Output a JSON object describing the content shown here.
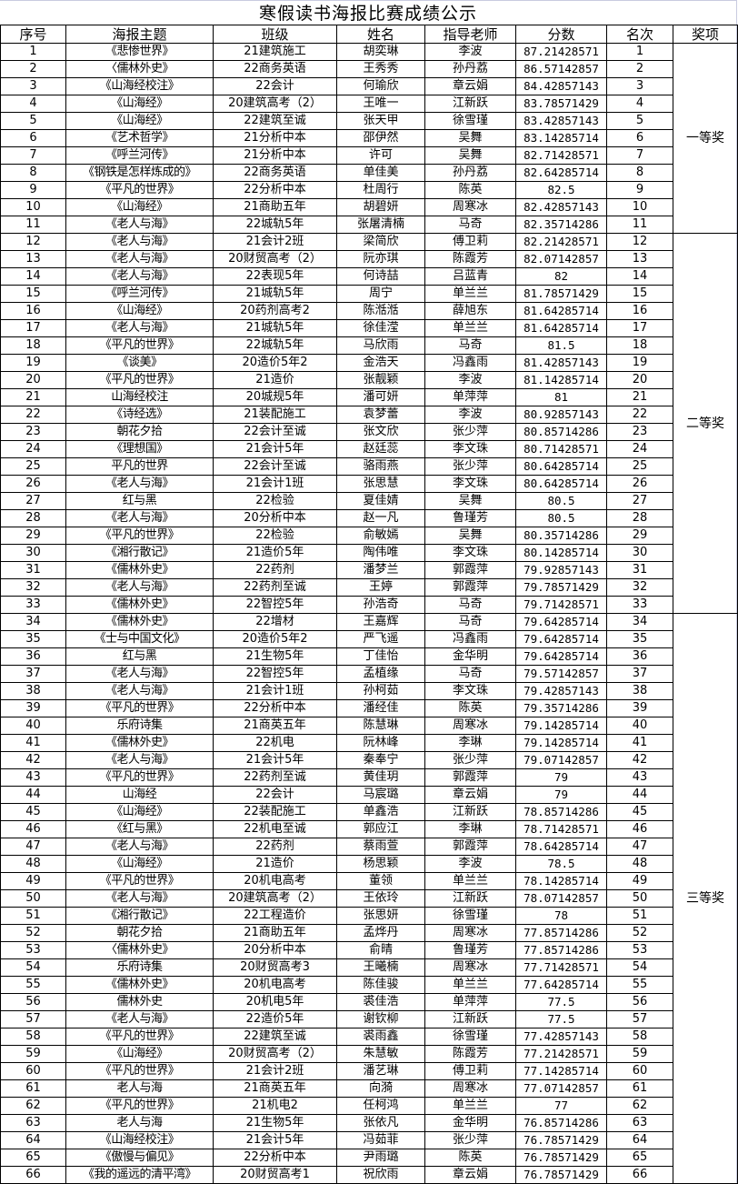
{
  "title": "寒假读书海报比赛成绩公示",
  "headers": [
    "序号",
    "海报主题",
    "班级",
    "姓名",
    "指导老师",
    "分数",
    "名次",
    "奖项"
  ],
  "awards": [
    {
      "label": "一等奖",
      "from": 1,
      "to": 11
    },
    {
      "label": "二等奖",
      "from": 12,
      "to": 33
    },
    {
      "label": "三等奖",
      "from": 34,
      "to": 66
    }
  ],
  "rows": [
    [
      "1",
      "《悲惨世界》",
      "21建筑施工",
      "胡奕琳",
      "李波",
      "87.21428571",
      "1"
    ],
    [
      "2",
      "〈儒林外史》",
      "22商务英语",
      "王秀秀",
      "孙丹荔",
      "86.57142857",
      "2"
    ],
    [
      "3",
      "《山海经校注》",
      "22会计",
      "何瑜欣",
      "章云娟",
      "84.42857143",
      "3"
    ],
    [
      "4",
      "《山海经》",
      "20建筑高考（2）",
      "王唯一",
      "江新跃",
      "83.78571429",
      "4"
    ],
    [
      "5",
      "《山海经》",
      "22建筑至诚",
      "张天甲",
      "徐雪瑾",
      "83.42857143",
      "5"
    ],
    [
      "6",
      "《艺术哲学》",
      "21分析中本",
      "邵伊然",
      "吴舞",
      "83.14285714",
      "6"
    ],
    [
      "7",
      "《呼兰河传》",
      "21分析中本",
      "许可",
      "吴舞",
      "82.71428571",
      "7"
    ],
    [
      "8",
      "《钢铁是怎样炼成的》",
      "22商务英语",
      "单佳美",
      "孙丹荔",
      "82.64285714",
      "8"
    ],
    [
      "9",
      "《平凡的世界》",
      "22分析中本",
      "杜周行",
      "陈英",
      "82.5",
      "9"
    ],
    [
      "10",
      "《山海经》",
      "21商助五年",
      "胡碧妍",
      "周寒冰",
      "82.42857143",
      "10"
    ],
    [
      "11",
      "《老人与海》",
      "22城轨5年",
      "张屠清楠",
      "马奇",
      "82.35714286",
      "11"
    ],
    [
      "12",
      "《老人与海》",
      "21会计2班",
      "梁简欣",
      "傅卫莉",
      "82.21428571",
      "12"
    ],
    [
      "13",
      "《老人与海》",
      "20财贸高考（2）",
      "阮亦琪",
      "陈霞芳",
      "82.07142857",
      "13"
    ],
    [
      "14",
      "《老人与海》",
      "22表现5年",
      "何诗喆",
      "吕蓝青",
      "82",
      "14"
    ],
    [
      "15",
      "《呼兰河传》",
      "21城轨5年",
      "周宁",
      "单兰兰",
      "81.78571429",
      "15"
    ],
    [
      "16",
      "《山海经》",
      "20药剂高考2",
      "陈湉湉",
      "薛旭东",
      "81.64285714",
      "16"
    ],
    [
      "17",
      "《老人与海》",
      "21城轨5年",
      "徐佳滢",
      "单兰兰",
      "81.64285714",
      "17"
    ],
    [
      "18",
      "《平凡的世界》",
      "22城轨5年",
      "马欣雨",
      "马奇",
      "81.5",
      "18"
    ],
    [
      "19",
      "《谈美》",
      "20造价5年2",
      "金浩天",
      "冯鑫雨",
      "81.42857143",
      "19"
    ],
    [
      "20",
      "《平凡的世界》",
      "21造价",
      "张靓颖",
      "李波",
      "81.14285714",
      "20"
    ],
    [
      "21",
      "山海经校注",
      "20城规5年",
      "潘可妍",
      "单萍萍",
      "81",
      "21"
    ],
    [
      "22",
      "《诗经选》",
      "21装配施工",
      "袁梦蕾",
      "李波",
      "80.92857143",
      "22"
    ],
    [
      "23",
      "朝花夕拾",
      "22会计至诚",
      "张文欣",
      "张少萍",
      "80.85714286",
      "23"
    ],
    [
      "24",
      "《理想国》",
      "21会计5年",
      "赵廷蕊",
      "李文珠",
      "80.71428571",
      "24"
    ],
    [
      "25",
      "平凡的世界",
      "22会计至诚",
      "骆雨燕",
      "张少萍",
      "80.64285714",
      "25"
    ],
    [
      "26",
      "《老人与海》",
      "21会计1班",
      "张思慧",
      "李文珠",
      "80.64285714",
      "26"
    ],
    [
      "27",
      "红与黑",
      "22检验",
      "夏佳婧",
      "吴舞",
      "80.5",
      "27"
    ],
    [
      "28",
      "《老人与海》",
      "20分析中本",
      "赵一凡",
      "鲁瑾芳",
      "80.5",
      "28"
    ],
    [
      "29",
      "《平凡的世界》",
      "22检验",
      "俞敏嫣",
      "吴舞",
      "80.35714286",
      "29"
    ],
    [
      "30",
      "《湘行散记》",
      "21造价5年",
      "陶伟唯",
      "李文珠",
      "80.14285714",
      "30"
    ],
    [
      "31",
      "《儒林外史》",
      "22药剂",
      "潘梦兰",
      "郭霞萍",
      "79.92857143",
      "31"
    ],
    [
      "32",
      "《老人与海》",
      "22药剂至诚",
      "王婷",
      "郭霞萍",
      "79.78571429",
      "32"
    ],
    [
      "33",
      "《儒林外史》",
      "22智控5年",
      "孙浩奇",
      "马奇",
      "79.71428571",
      "33"
    ],
    [
      "34",
      "《儒林外史》",
      "22增材",
      "王嘉辉",
      "马奇",
      "79.64285714",
      "34"
    ],
    [
      "35",
      "《士与中国文化》",
      "20造价5年2",
      "严飞遥",
      "冯鑫雨",
      "79.64285714",
      "35"
    ],
    [
      "36",
      "红与黑",
      "21生物5年",
      "丁佳怡",
      "金华明",
      "79.64285714",
      "36"
    ],
    [
      "37",
      "《老人与海》",
      "22智控5年",
      "孟植缘",
      "马奇",
      "79.57142857",
      "37"
    ],
    [
      "38",
      "《老人与海》",
      "21会计1班",
      "孙柯茹",
      "李文珠",
      "79.42857143",
      "38"
    ],
    [
      "39",
      "《平凡的世界》",
      "22分析中本",
      "潘经佳",
      "陈英",
      "79.35714286",
      "39"
    ],
    [
      "40",
      "乐府诗集",
      "21商英五年",
      "陈慧琳",
      "周寒冰",
      "79.14285714",
      "40"
    ],
    [
      "41",
      "《儒林外史》",
      "22机电",
      "阮林峰",
      "李琳",
      "79.14285714",
      "41"
    ],
    [
      "42",
      "《老人与海》",
      "21会计5年",
      "秦奉宁",
      "张少萍",
      "79.07142857",
      "42"
    ],
    [
      "43",
      "《平凡的世界》",
      "22药剂至诚",
      "黄佳玥",
      "郭霞萍",
      "79",
      "43"
    ],
    [
      "44",
      "山海经",
      "22会计",
      "马宸璐",
      "章云娟",
      "79",
      "44"
    ],
    [
      "45",
      "《山海经》",
      "22装配施工",
      "单鑫浩",
      "江新跃",
      "78.85714286",
      "45"
    ],
    [
      "46",
      "《红与黑》",
      "22机电至诚",
      "郭应江",
      "李琳",
      "78.71428571",
      "46"
    ],
    [
      "47",
      "《老人与海》",
      "22药剂",
      "蔡雨萱",
      "郭霞萍",
      "78.64285714",
      "47"
    ],
    [
      "48",
      "《山海经》",
      "21造价",
      "杨思颖",
      "李波",
      "78.5",
      "48"
    ],
    [
      "49",
      "《平凡的世界》",
      "20机电高考",
      "董领",
      "单兰兰",
      "78.14285714",
      "49"
    ],
    [
      "50",
      "《老人与海》",
      "20建筑高考（2）",
      "王依玲",
      "江新跃",
      "78.07142857",
      "50"
    ],
    [
      "51",
      "《湘行散记》",
      "22工程造价",
      "张思妍",
      "徐雪瑾",
      "78",
      "51"
    ],
    [
      "52",
      "朝花夕拾",
      "21商助五年",
      "孟烨丹",
      "周寒冰",
      "77.85714286",
      "52"
    ],
    [
      "53",
      "〈儒林外史》",
      "20分析中本",
      "俞晴",
      "鲁瑾芳",
      "77.85714286",
      "53"
    ],
    [
      "54",
      "乐府诗集",
      "20财贸高考3",
      "王曦楠",
      "周寒冰",
      "77.71428571",
      "54"
    ],
    [
      "55",
      "《儒林外史》",
      "20机电高考",
      "陈佳骏",
      "单兰兰",
      "77.64285714",
      "55"
    ],
    [
      "56",
      "儒林外史",
      "20机电5年",
      "裘佳浩",
      "单萍萍",
      "77.5",
      "56"
    ],
    [
      "57",
      "《老人与海》",
      "22造价5年",
      "谢钦柳",
      "江新跃",
      "77.5",
      "57"
    ],
    [
      "58",
      "《平凡的世界》",
      "22建筑至诚",
      "裘雨鑫",
      "徐雪瑾",
      "77.42857143",
      "58"
    ],
    [
      "59",
      "《山海经》",
      "20财贸高考（2）",
      "朱慧敏",
      "陈霞芳",
      "77.21428571",
      "59"
    ],
    [
      "60",
      "《平凡的世界》",
      "21会计2班",
      "潘艺琳",
      "傅卫莉",
      "77.14285714",
      "60"
    ],
    [
      "61",
      "老人与海",
      "21商英五年",
      "向漪",
      "周寒冰",
      "77.07142857",
      "61"
    ],
    [
      "62",
      "《平凡的世界》",
      "21机电2",
      "任柯鸿",
      "单兰兰",
      "77",
      "62"
    ],
    [
      "63",
      "老人与海",
      "21生物5年",
      "张依凡",
      "金华明",
      "76.85714286",
      "63"
    ],
    [
      "64",
      "《山海经校注》",
      "21会计5年",
      "冯茹菲",
      "张少萍",
      "76.78571429",
      "64"
    ],
    [
      "65",
      "《傲慢与偏见》",
      "22分析中本",
      "尹雨璐",
      "陈英",
      "76.78571429",
      "65"
    ],
    [
      "66",
      "《我的遥远的清平湾》",
      "20财贸高考1",
      "祝欣雨",
      "章云娟",
      "76.78571429",
      "66"
    ]
  ]
}
